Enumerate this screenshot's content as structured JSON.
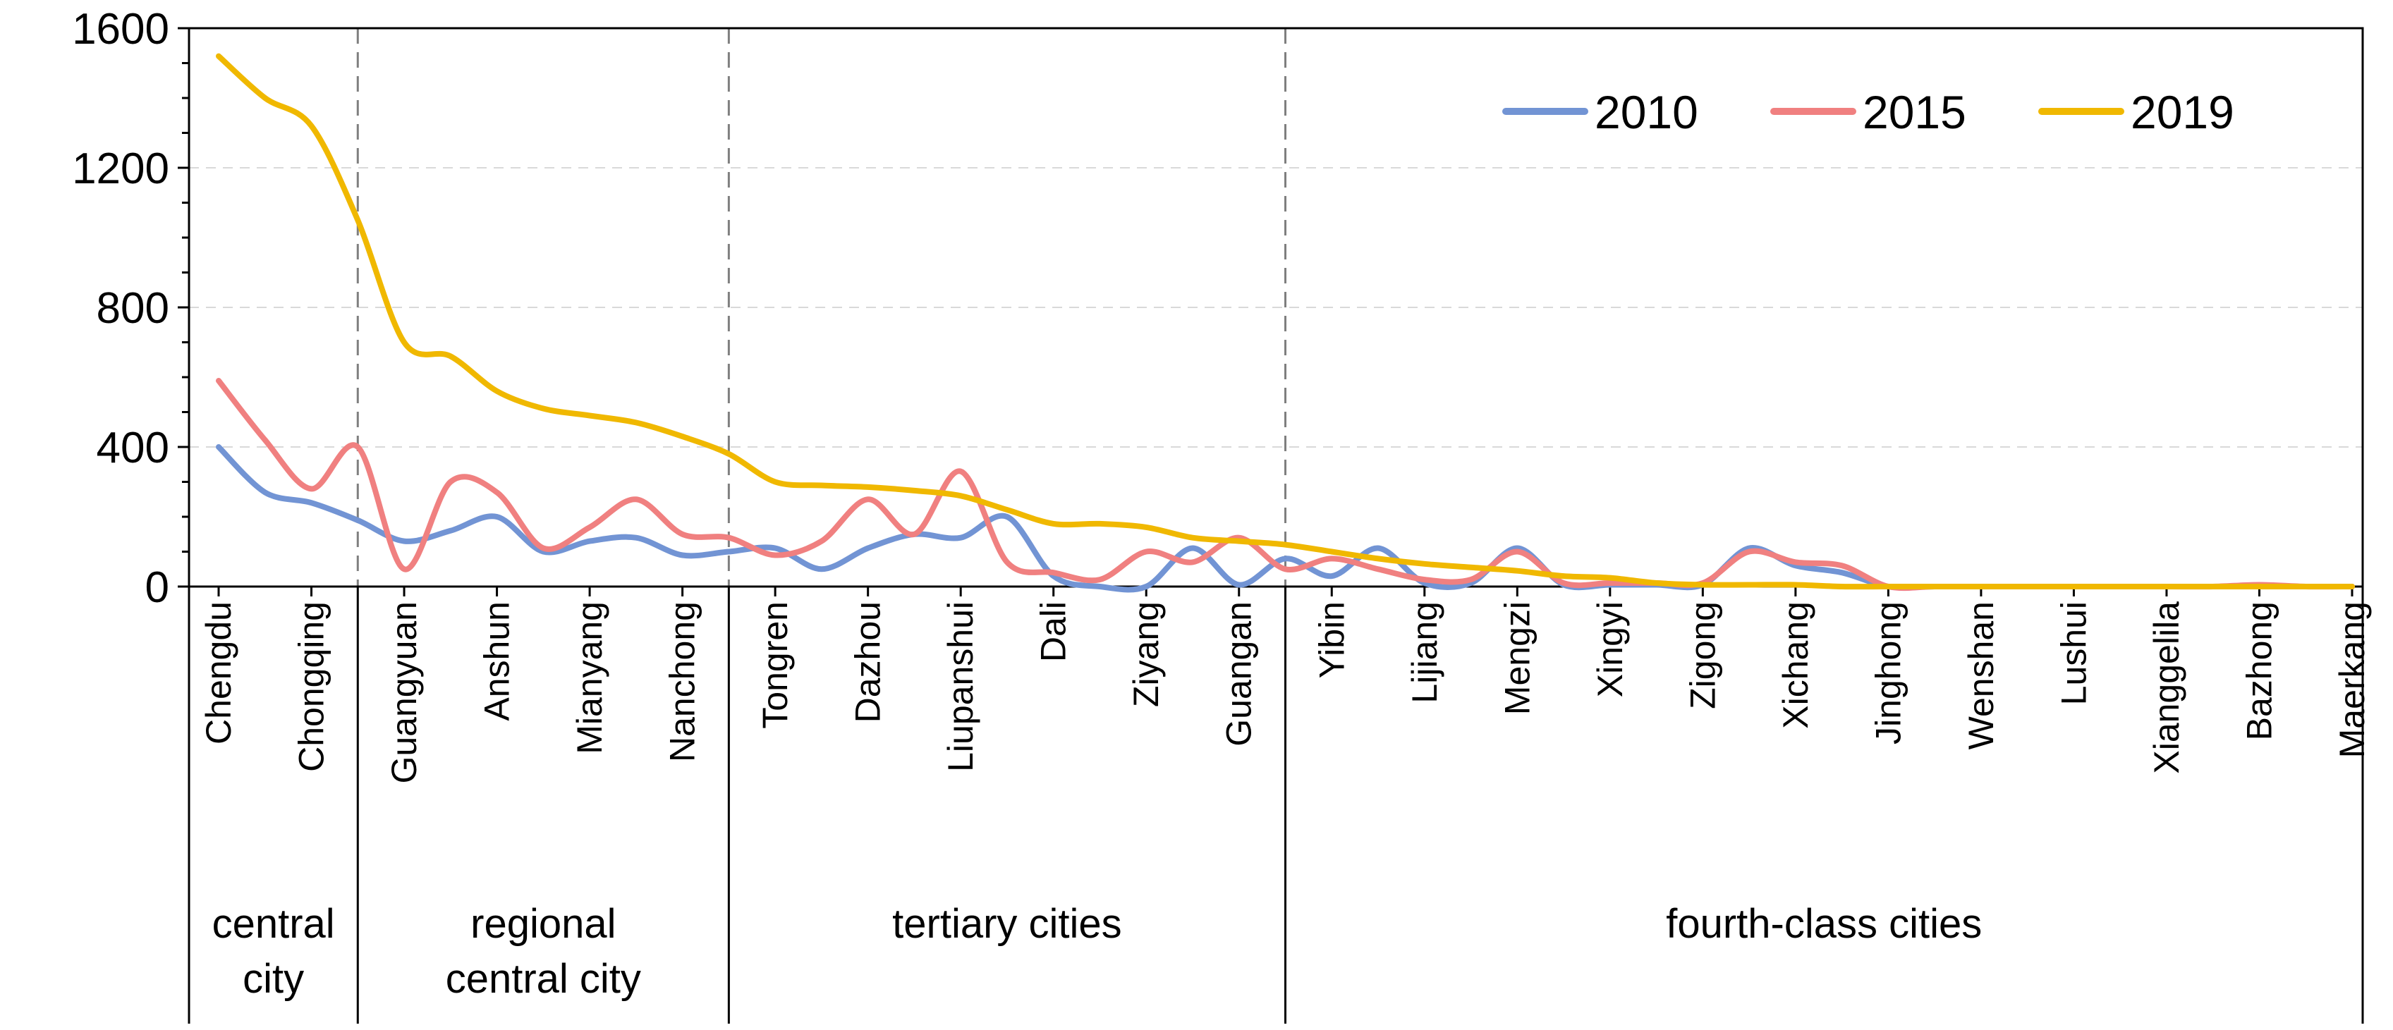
{
  "chart_data": {
    "type": "line",
    "title": "",
    "xlabel": "",
    "ylabel": "",
    "ylim": [
      0,
      1600
    ],
    "yticks": [
      0,
      400,
      800,
      1200,
      1600
    ],
    "grid": "horizontal dashed",
    "legend": "top-right",
    "categories": [
      "Chengdu",
      "Chongqing",
      "Guangyuan",
      "Anshun",
      "Mianyang",
      "Nanchong",
      "Tongren",
      "Dazhou",
      "Liupanshui",
      "Dali",
      "Ziyang",
      "Guangan",
      "Yibin",
      "Lijiang",
      "Mengzi",
      "Xingyi",
      "Zigong",
      "Xichang",
      "Jinghong",
      "Wenshan",
      "Lushui",
      "Xianggelila",
      "Bazhong",
      "Maerkang"
    ],
    "x": [
      0,
      0.5,
      1,
      1.5,
      2,
      2.5,
      3,
      3.5,
      4,
      4.5,
      5,
      5.5,
      6,
      6.5,
      7,
      7.5,
      8,
      8.5,
      9,
      9.5,
      10,
      10.5,
      11,
      11.5,
      12,
      12.5,
      13,
      13.5,
      14,
      14.5,
      15,
      15.5,
      16,
      16.5,
      17,
      17.5,
      18,
      18.5,
      19,
      19.5,
      20,
      20.5,
      21,
      21.5,
      22,
      22.5,
      23
    ],
    "series": [
      {
        "name": "2010",
        "color": "#7294d4",
        "values": [
          400,
          270,
          240,
          190,
          130,
          160,
          200,
          100,
          130,
          140,
          90,
          100,
          110,
          50,
          110,
          150,
          140,
          200,
          30,
          0,
          0,
          110,
          5,
          80,
          30,
          110,
          10,
          10,
          110,
          5,
          5,
          5,
          5,
          110,
          60,
          40,
          0,
          0,
          0,
          0,
          0,
          0,
          0,
          0,
          0,
          0,
          0
        ]
      },
      {
        "name": "2015",
        "color": "#f08080",
        "values": [
          590,
          420,
          280,
          400,
          50,
          300,
          270,
          110,
          170,
          250,
          150,
          140,
          90,
          130,
          250,
          150,
          330,
          70,
          40,
          20,
          100,
          70,
          140,
          50,
          80,
          50,
          20,
          20,
          100,
          10,
          10,
          10,
          10,
          100,
          70,
          60,
          0,
          0,
          0,
          0,
          0,
          0,
          0,
          0,
          5,
          0,
          0
        ]
      },
      {
        "name": "2019",
        "color": "#f0b800",
        "values": [
          1520,
          1400,
          1320,
          1050,
          700,
          660,
          560,
          510,
          490,
          470,
          430,
          380,
          300,
          290,
          285,
          275,
          260,
          220,
          180,
          180,
          170,
          140,
          130,
          120,
          100,
          80,
          65,
          55,
          45,
          30,
          25,
          10,
          5,
          5,
          5,
          0,
          0,
          0,
          0,
          0,
          0,
          0,
          0,
          0,
          0,
          0,
          0
        ]
      }
    ],
    "groups": [
      {
        "lines": [
          "central",
          "city"
        ],
        "range": [
          0,
          1
        ]
      },
      {
        "lines": [
          "regional",
          "central city"
        ],
        "range": [
          2,
          5
        ]
      },
      {
        "lines": [
          "tertiary cities"
        ],
        "range": [
          6,
          11
        ]
      },
      {
        "lines": [
          "fourth-class cities"
        ],
        "range": [
          12,
          23
        ]
      }
    ],
    "dividers_after": [
      1,
      5,
      11
    ]
  }
}
